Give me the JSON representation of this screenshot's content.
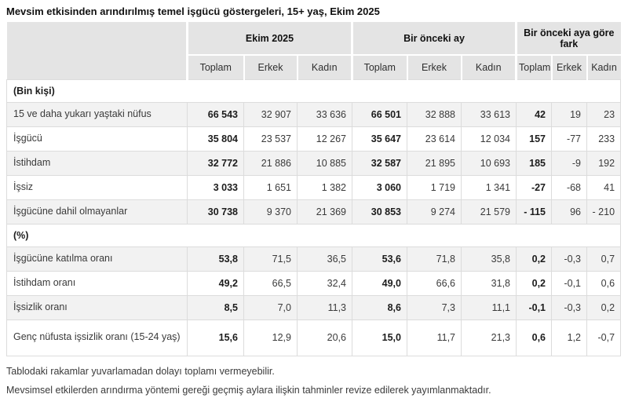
{
  "page": {
    "title": "Mevsim etkisinden arındırılmış temel işgücü göstergeleri, 15+ yaş, Ekim 2025",
    "notes": [
      "Tablodaki rakamlar yuvarlamadan dolayı toplamı vermeyebilir.",
      "Mevsimsel etkilerden arındırma yöntemi gereği geçmiş aylara ilişkin tahminler revize edilerek yayımlanmaktadır."
    ]
  },
  "colors": {
    "header_bg": "#e4e4e4",
    "row_stripe_bg": "#f2f2f2",
    "cell_border": "#dcdcdc",
    "body_text": "#3a3a3a",
    "title_text": "#111111"
  },
  "table": {
    "column_groups": [
      {
        "label": "Ekim 2025"
      },
      {
        "label": "Bir önceki ay"
      },
      {
        "label": "Bir önceki aya göre fark"
      }
    ],
    "sub_headers": [
      "Toplam",
      "Erkek",
      "Kadın",
      "Toplam",
      "Erkek",
      "Kadın",
      "Toplam",
      "Erkek",
      "Kadın"
    ],
    "rows": [
      {
        "type": "section",
        "label": "(Bin kişi)"
      },
      {
        "type": "data",
        "striped": true,
        "label": "15 ve daha yukarı yaştaki nüfus",
        "values": [
          "66 543",
          "32 907",
          "33 636",
          "66 501",
          "32 888",
          "33 613",
          "42",
          "19",
          "23"
        ]
      },
      {
        "type": "data",
        "striped": false,
        "label": "İşgücü",
        "values": [
          "35 804",
          "23 537",
          "12 267",
          "35 647",
          "23 614",
          "12 034",
          "157",
          "-77",
          "233"
        ]
      },
      {
        "type": "data",
        "striped": true,
        "label": "İstihdam",
        "values": [
          "32 772",
          "21 886",
          "10 885",
          "32 587",
          "21 895",
          "10 693",
          "185",
          "-9",
          "192"
        ]
      },
      {
        "type": "data",
        "striped": false,
        "label": "İşsiz",
        "values": [
          "3 033",
          "1 651",
          "1 382",
          "3 060",
          "1 719",
          "1 341",
          "-27",
          "-68",
          "41"
        ]
      },
      {
        "type": "data",
        "striped": true,
        "label": "İşgücüne dahil olmayanlar",
        "values": [
          "30 738",
          "9 370",
          "21 369",
          "30 853",
          "9 274",
          "21 579",
          "- 115",
          "96",
          "- 210"
        ]
      },
      {
        "type": "section",
        "label": "(%)"
      },
      {
        "type": "data",
        "striped": true,
        "label": "İşgücüne katılma oranı",
        "values": [
          "53,8",
          "71,5",
          "36,5",
          "53,6",
          "71,8",
          "35,8",
          "0,2",
          "-0,3",
          "0,7"
        ]
      },
      {
        "type": "data",
        "striped": false,
        "label": "İstihdam oranı",
        "values": [
          "49,2",
          "66,5",
          "32,4",
          "49,0",
          "66,6",
          "31,8",
          "0,2",
          "-0,1",
          "0,6"
        ]
      },
      {
        "type": "data",
        "striped": true,
        "label": "İşsizlik oranı",
        "values": [
          "8,5",
          "7,0",
          "11,3",
          "8,6",
          "7,3",
          "11,1",
          "-0,1",
          "-0,3",
          "0,2"
        ]
      },
      {
        "type": "data",
        "striped": false,
        "tall": true,
        "label": "Genç nüfusta işsizlik oranı (15-24 yaş)",
        "values": [
          "15,6",
          "12,9",
          "20,6",
          "15,0",
          "11,7",
          "21,3",
          "0,6",
          "1,2",
          "-0,7"
        ]
      }
    ]
  }
}
